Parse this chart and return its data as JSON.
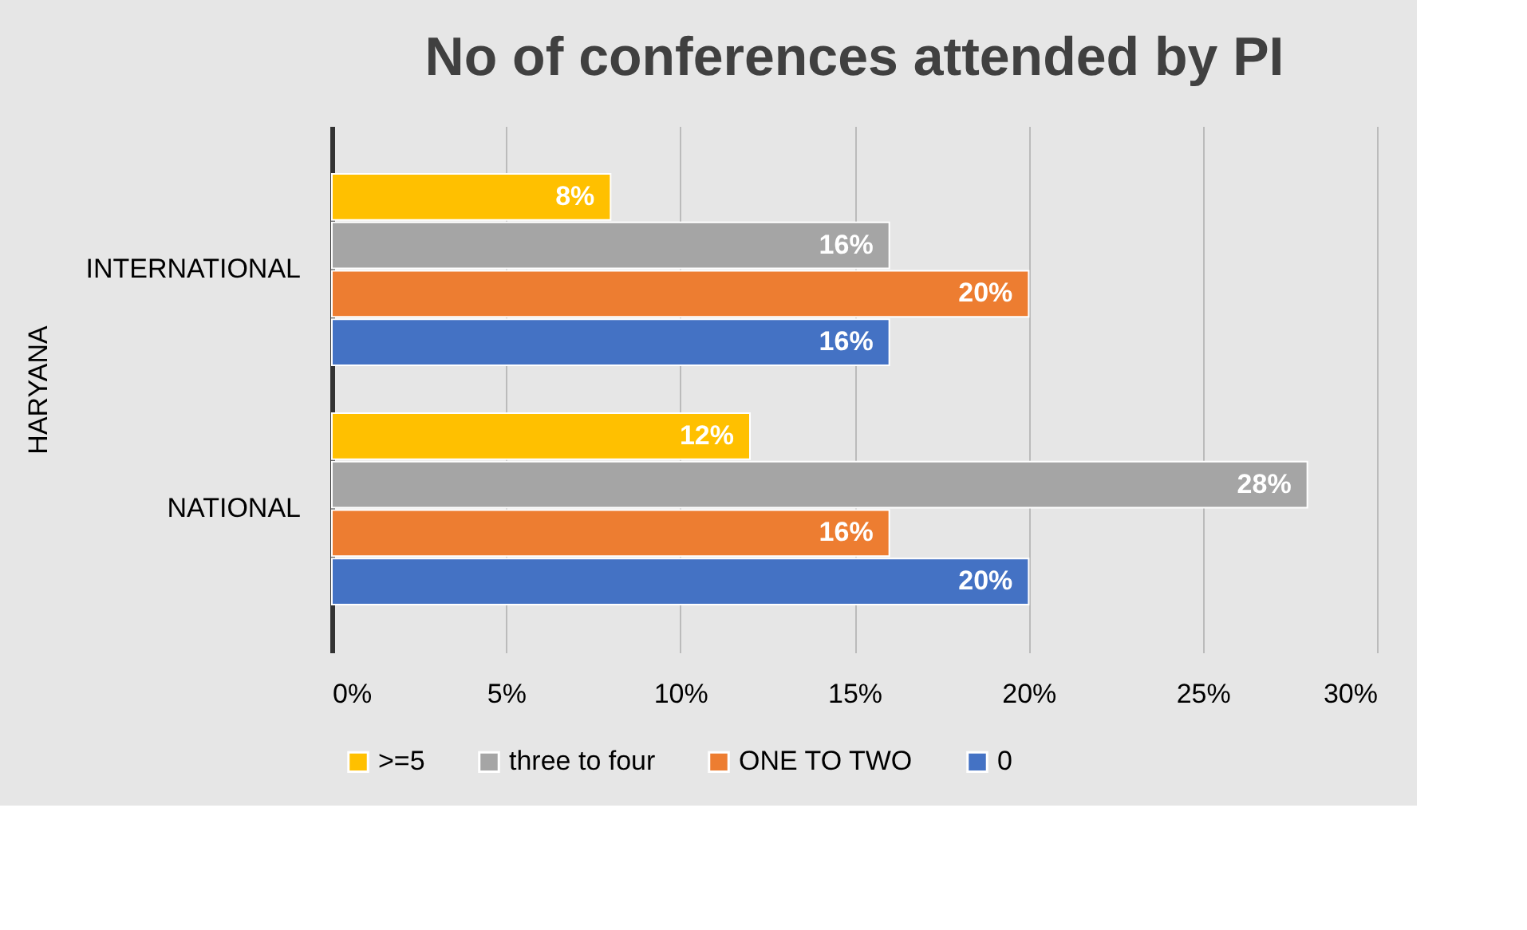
{
  "chart_data": {
    "type": "bar",
    "orientation": "horizontal",
    "title": "No of conferences attended by PI",
    "ylabel": "HARYANA",
    "categories": [
      "INTERNATIONAL",
      "NATIONAL"
    ],
    "series": [
      {
        "name": ">=5",
        "color": "#ffc000",
        "values": [
          8,
          12
        ],
        "value_labels": [
          "8%",
          "12%"
        ]
      },
      {
        "name": "three to four",
        "color": "#a5a5a5",
        "values": [
          16,
          28
        ],
        "value_labels": [
          "16%",
          "28%"
        ]
      },
      {
        "name": "ONE TO TWO",
        "color": "#ed7d31",
        "values": [
          20,
          16
        ],
        "value_labels": [
          "20%",
          "16%"
        ]
      },
      {
        "name": "0",
        "color": "#4472c4",
        "values": [
          16,
          20
        ],
        "value_labels": [
          "16%",
          "20%"
        ]
      }
    ],
    "xlim": [
      0,
      30
    ],
    "xticks": [
      {
        "value": 0,
        "label": "0%"
      },
      {
        "value": 5,
        "label": "5%"
      },
      {
        "value": 10,
        "label": "10%"
      },
      {
        "value": 15,
        "label": "15%"
      },
      {
        "value": 20,
        "label": "20%"
      },
      {
        "value": 25,
        "label": "25%"
      },
      {
        "value": 30,
        "label": "30%"
      }
    ],
    "grid": "x",
    "legend": "bottom"
  }
}
